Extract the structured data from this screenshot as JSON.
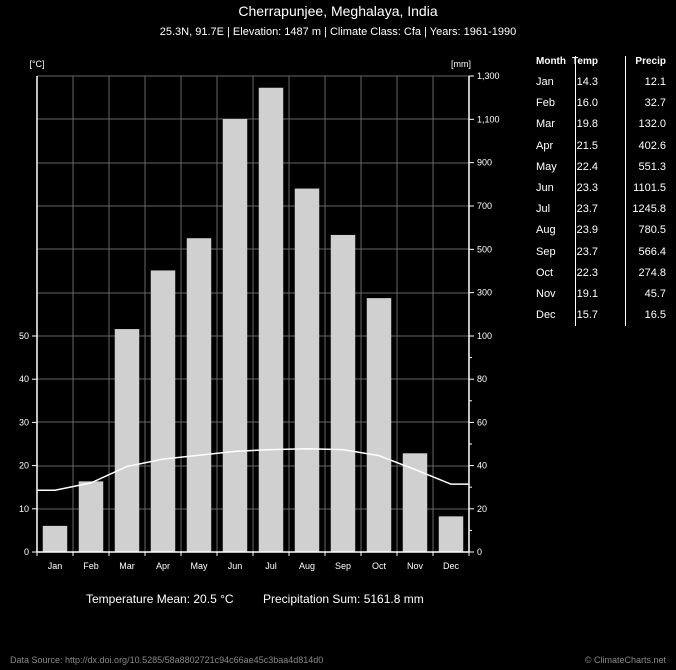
{
  "header": {
    "title": "Cherrapunjee, Meghalaya, India",
    "subtitle": "25.3N, 91.7E | Elevation: 1487 m | Climate Class: Cfa | Years: 1961-1990"
  },
  "table": {
    "headers": [
      "Month",
      "Temp",
      "Precip"
    ],
    "rows": [
      [
        "Jan",
        "14.3",
        "12.1"
      ],
      [
        "Feb",
        "16.0",
        "32.7"
      ],
      [
        "Mar",
        "19.8",
        "132.0"
      ],
      [
        "Apr",
        "21.5",
        "402.6"
      ],
      [
        "May",
        "22.4",
        "551.3"
      ],
      [
        "Jun",
        "23.3",
        "1101.5"
      ],
      [
        "Jul",
        "23.7",
        "1245.8"
      ],
      [
        "Aug",
        "23.9",
        "780.5"
      ],
      [
        "Sep",
        "23.7",
        "566.4"
      ],
      [
        "Oct",
        "22.3",
        "274.8"
      ],
      [
        "Nov",
        "19.1",
        "45.7"
      ],
      [
        "Dec",
        "15.7",
        "16.5"
      ]
    ]
  },
  "summary": {
    "temp_mean": "Temperature Mean: 20.5 °C",
    "precip_sum": "Precipitation Sum: 5161.8 mm"
  },
  "footer": {
    "source": "Data Source: http://dx.doi.org/10.5285/58a8802721c94c66ae45c3baa4d814d0",
    "credit": "© ClimateCharts.net"
  },
  "chart_data": {
    "type": "bar",
    "categories": [
      "Jan",
      "Feb",
      "Mar",
      "Apr",
      "May",
      "Jun",
      "Jul",
      "Aug",
      "Sep",
      "Oct",
      "Nov",
      "Dec"
    ],
    "series": [
      {
        "kind": "bar",
        "values": [
          12.1,
          32.7,
          132.0,
          402.6,
          551.3,
          1101.5,
          1245.8,
          780.5,
          566.4,
          274.8,
          45.7,
          16.5
        ]
      },
      {
        "kind": "line",
        "values": [
          14.3,
          16.0,
          19.8,
          21.5,
          22.4,
          23.3,
          23.7,
          23.9,
          23.7,
          22.3,
          19.1,
          15.7
        ]
      }
    ],
    "left_axis": {
      "unit_label": "[°C]",
      "ticks": [
        0,
        10,
        20,
        30,
        40,
        50
      ],
      "max": 50
    },
    "right_axis": {
      "unit_label": "[mm]",
      "lower_ticks": [
        0,
        20,
        40,
        60,
        80,
        100
      ],
      "lower_max": 100,
      "upper_ticks": [
        100,
        300,
        500,
        700,
        900,
        1100,
        1300
      ],
      "upper_tick_labels": [
        "100",
        "300",
        "500",
        "700",
        "900",
        "1,100",
        "1,300"
      ],
      "upper_max": 1300
    },
    "grid": true,
    "colors": {
      "bar": "#d0d0d0",
      "line": "#ffffff",
      "grid": "#666666",
      "background": "#000000"
    }
  }
}
